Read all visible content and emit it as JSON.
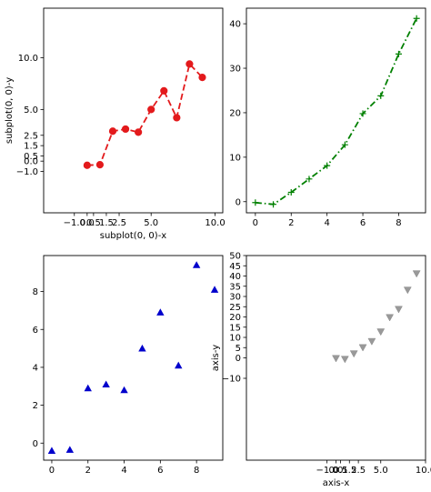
{
  "chart_data": [
    {
      "type": "line",
      "xlabel": "subplot(0, 0)-x",
      "ylabel": "subplot(0, 0)-y",
      "xlim": [
        -3.4,
        10.6
      ],
      "ylim": [
        -5.0,
        14.8
      ],
      "xticks": [
        -1.0,
        0.0,
        0.5,
        1.5,
        2.5,
        5.0,
        10.0
      ],
      "xticklabels": [
        "−1.0",
        "0.0",
        "0.5",
        "1.5",
        "2.5",
        "5.0",
        "10.0"
      ],
      "yticks": [
        -1.0,
        0.0,
        0.5,
        1.5,
        2.5,
        5.0,
        10.0
      ],
      "yticklabels": [
        "−1.0",
        "0.0",
        "0.5",
        "1.5",
        "2.5",
        "5.0",
        "10.0"
      ],
      "grid": false,
      "series": [
        {
          "color": "#e31a1c",
          "linestyle": "dashed",
          "marker": "circle",
          "x": [
            0,
            1,
            2,
            3,
            4,
            5,
            6,
            7,
            8,
            9
          ],
          "y": [
            -0.4,
            -0.35,
            2.9,
            3.1,
            2.8,
            5.0,
            6.8,
            4.2,
            9.4,
            8.1
          ]
        }
      ]
    },
    {
      "type": "line",
      "xlim": [
        -0.5,
        9.5
      ],
      "ylim": [
        -2.5,
        43.5
      ],
      "xticks": [
        0,
        2,
        4,
        6,
        8
      ],
      "xticklabels": [
        "0",
        "2",
        "4",
        "6",
        "8"
      ],
      "yticks": [
        0,
        10,
        20,
        30,
        40
      ],
      "yticklabels": [
        "0",
        "10",
        "20",
        "30",
        "40"
      ],
      "grid": false,
      "series": [
        {
          "color": "#008000",
          "linestyle": "dashdot",
          "marker": "plus",
          "x": [
            0,
            1,
            2,
            3,
            4,
            5,
            6,
            7,
            8,
            9
          ],
          "y": [
            -0.2,
            -0.6,
            2.1,
            5.1,
            8.1,
            12.8,
            19.8,
            23.8,
            33.2,
            41.2
          ]
        }
      ]
    },
    {
      "type": "scatter",
      "xlim": [
        -0.45,
        9.45
      ],
      "ylim": [
        -0.9,
        9.9
      ],
      "xticks": [
        0,
        2,
        4,
        6,
        8
      ],
      "xticklabels": [
        "0",
        "2",
        "4",
        "6",
        "8"
      ],
      "yticks": [
        0,
        2,
        4,
        6,
        8
      ],
      "yticklabels": [
        "0",
        "2",
        "4",
        "6",
        "8"
      ],
      "grid": false,
      "series": [
        {
          "color": "#0000cc",
          "marker": "triangle-up",
          "x": [
            0,
            1,
            2,
            3,
            4,
            5,
            6,
            7,
            8,
            9
          ],
          "y": [
            -0.4,
            -0.35,
            2.9,
            3.1,
            2.8,
            5.0,
            6.9,
            4.1,
            9.4,
            8.1
          ]
        }
      ]
    },
    {
      "type": "scatter",
      "xlabel": "axis-x",
      "ylabel": "axis-y",
      "xlim": [
        -10.0,
        10.0
      ],
      "ylim": [
        -50.0,
        50.0
      ],
      "xticks": [
        -1.0,
        0.0,
        0.5,
        1.5,
        2.5,
        5.0,
        10.0
      ],
      "xticklabels": [
        "−1.0",
        "0.0",
        "0.5",
        "1.5",
        "2.5",
        "5.0",
        "10.0"
      ],
      "yticks": [
        -10,
        0,
        5,
        10,
        15,
        20,
        25,
        30,
        35,
        40,
        45,
        50
      ],
      "yticklabels": [
        "−10",
        "0",
        "5",
        "10",
        "15",
        "20",
        "25",
        "30",
        "35",
        "40",
        "45",
        "50"
      ],
      "grid": false,
      "series": [
        {
          "color": "#999999",
          "marker": "triangle-down",
          "x": [
            0,
            1,
            2,
            3,
            4,
            5,
            6,
            7,
            8,
            9
          ],
          "y": [
            -0.2,
            -0.6,
            2.1,
            5.1,
            8.1,
            12.8,
            19.8,
            23.8,
            33.2,
            41.2
          ]
        }
      ]
    }
  ]
}
